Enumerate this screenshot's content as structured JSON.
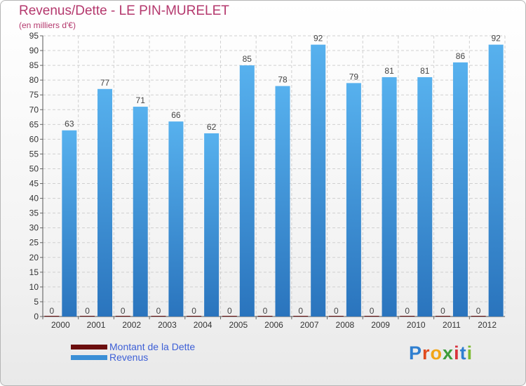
{
  "chart_data": {
    "type": "bar",
    "title": "Revenus/Dette - LE PIN-MURELET",
    "subtitle": "(en milliers d'€)",
    "categories": [
      "2000",
      "2001",
      "2002",
      "2003",
      "2004",
      "2005",
      "2006",
      "2007",
      "2008",
      "2009",
      "2010",
      "2011",
      "2012"
    ],
    "series": [
      {
        "name": "Montant de la Dette",
        "color": "#6b0e0e",
        "values": [
          0,
          0,
          0,
          0,
          0,
          0,
          0,
          0,
          0,
          0,
          0,
          0,
          0
        ]
      },
      {
        "name": "Revenus",
        "color": "#3b8fd6",
        "values": [
          63,
          77,
          71,
          66,
          62,
          85,
          78,
          92,
          79,
          81,
          81,
          86,
          92
        ]
      }
    ],
    "ylim": [
      0,
      95
    ],
    "yticks": [
      0,
      5,
      10,
      15,
      20,
      25,
      30,
      35,
      40,
      45,
      50,
      55,
      60,
      65,
      70,
      75,
      80,
      85,
      90,
      95
    ],
    "xlabel": "",
    "ylabel": "",
    "grid": true,
    "legend_position": "bottom-left"
  },
  "logo": {
    "letters": [
      "P",
      "r",
      "o",
      "x",
      "i",
      "t",
      "i"
    ],
    "colors": [
      "#2f7fd0",
      "#e04a1d",
      "#f2a516",
      "#3d9d3a",
      "#d8323c",
      "#2f7fd0",
      "#7cba30"
    ]
  }
}
